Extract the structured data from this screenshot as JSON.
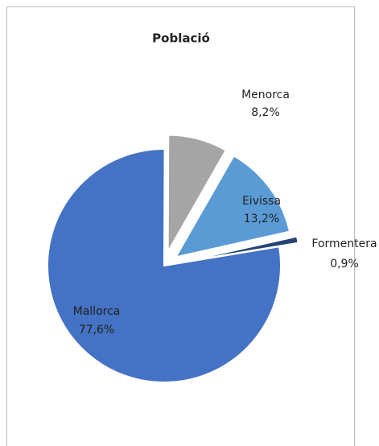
{
  "chart_data": {
    "type": "pie",
    "title": "Població",
    "categories": [
      "Mallorca",
      "Menorca",
      "Eivissa",
      "Formentera"
    ],
    "values": [
      77.6,
      8.2,
      13.2,
      0.9
    ],
    "value_labels": [
      "77,6%",
      "8,2%",
      "13,2%",
      "0,9%"
    ],
    "colors": [
      "#4472c4",
      "#a5a5a5",
      "#5b9bd5",
      "#264478"
    ]
  }
}
